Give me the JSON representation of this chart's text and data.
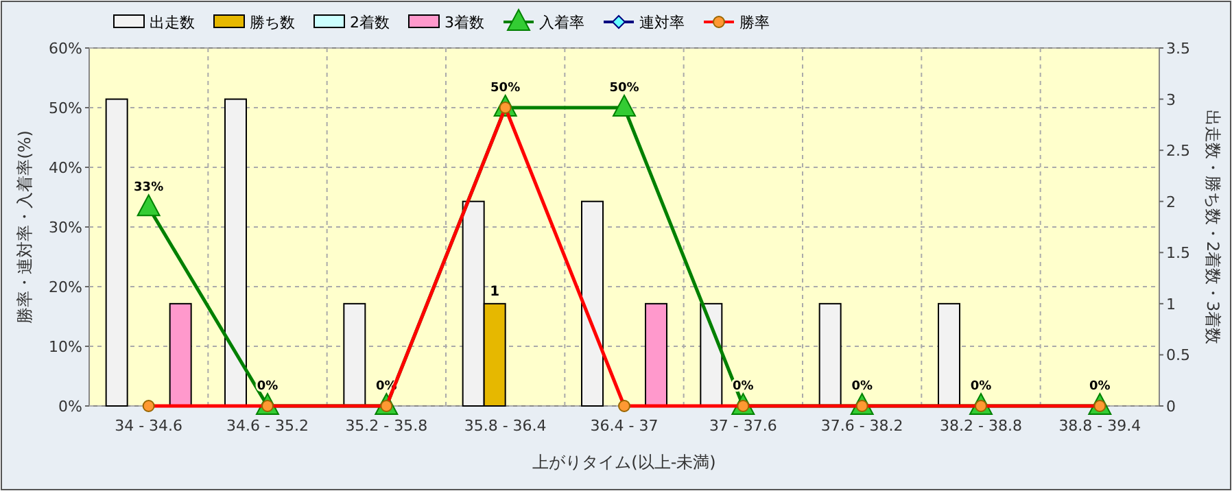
{
  "chart_data": {
    "type": "bar",
    "xlabel": "上がりタイム(以上-未満)",
    "ylabel": "勝率・連対率・入着率(%)",
    "y2label": "出走数・勝ち数・2着数・3着数",
    "categories": [
      "34 - 34.6",
      "34.6 - 35.2",
      "35.2 - 35.8",
      "35.8 - 36.4",
      "36.4 - 37",
      "37 - 37.6",
      "37.6 - 38.2",
      "38.2 - 38.8",
      "38.8 - 39.4"
    ],
    "series": [
      {
        "name": "出走数",
        "axis": "y2",
        "color": "#f2f2f2",
        "values": [
          3,
          3,
          1,
          2,
          2,
          1,
          1,
          1,
          0
        ]
      },
      {
        "name": "勝ち数",
        "axis": "y2",
        "color": "#e6b800",
        "values": [
          0,
          0,
          0,
          1,
          0,
          0,
          0,
          0,
          0
        ],
        "value_labels": [
          null,
          null,
          null,
          "1",
          null,
          null,
          null,
          null,
          null
        ]
      },
      {
        "name": "2着数",
        "axis": "y2",
        "color": "#ccffff",
        "values": [
          0,
          0,
          0,
          0,
          0,
          0,
          0,
          0,
          0
        ]
      },
      {
        "name": "3着数",
        "axis": "y2",
        "color": "#ff99cc",
        "values": [
          1,
          0,
          0,
          0,
          1,
          0,
          0,
          0,
          0
        ]
      },
      {
        "name": "入着率",
        "type": "line",
        "color": "#008000",
        "marker": "triangle",
        "values": [
          33.3,
          0,
          0,
          50,
          50,
          0,
          0,
          0,
          0
        ],
        "value_labels": [
          "33%",
          "0%",
          "0%",
          null,
          "50%",
          "0%",
          "0%",
          "0%",
          "0%"
        ]
      },
      {
        "name": "連対率",
        "type": "line",
        "color": "#000080",
        "marker": "diamond",
        "values": [
          null,
          null,
          null,
          null,
          null,
          null,
          null,
          null,
          null
        ]
      },
      {
        "name": "勝率",
        "type": "line",
        "color": "#ff0000",
        "marker": "circle",
        "values": [
          0,
          0,
          0,
          50,
          0,
          0,
          0,
          0,
          0
        ],
        "value_labels": [
          null,
          null,
          null,
          "50%",
          null,
          null,
          null,
          null,
          null
        ]
      }
    ],
    "ylim": [
      0,
      60
    ],
    "yticks": [
      {
        "value": 0,
        "label": "0%"
      },
      {
        "value": 10,
        "label": "10%"
      },
      {
        "value": 20,
        "label": "20%"
      },
      {
        "value": 30,
        "label": "30%"
      },
      {
        "value": 40,
        "label": "40%"
      },
      {
        "value": 50,
        "label": "50%"
      },
      {
        "value": 60,
        "label": "60%"
      }
    ],
    "y2lim": [
      0,
      3.5
    ],
    "y2ticks": [
      0,
      0.5,
      1,
      1.5,
      2,
      2.5,
      3,
      3.5
    ],
    "grid": true,
    "legend": "top left"
  }
}
